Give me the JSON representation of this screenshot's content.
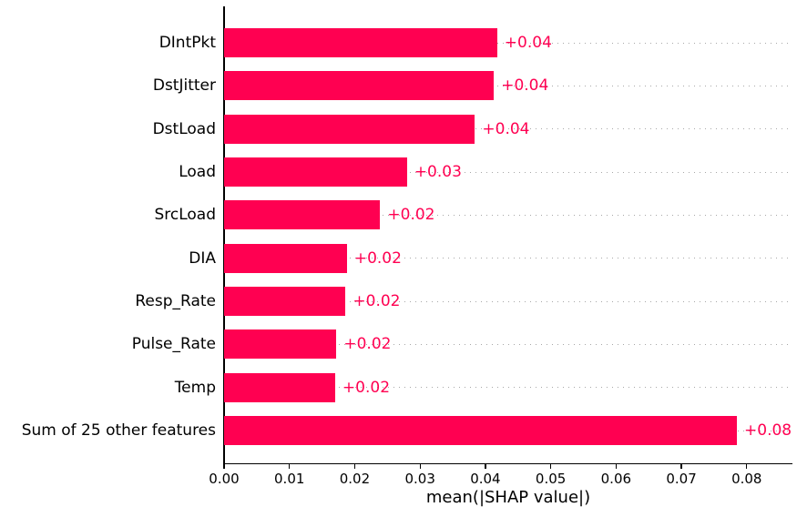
{
  "chart_data": {
    "type": "bar",
    "orientation": "horizontal",
    "title": "",
    "xlabel": "mean(|SHAP value|)",
    "ylabel": "",
    "categories": [
      "DIntPkt",
      "DstJitter",
      "DstLoad",
      "Load",
      "SrcLoad",
      "DIA",
      "Resp_Rate",
      "Pulse_Rate",
      "Temp",
      "Sum of 25 other features"
    ],
    "values": [
      0.0418,
      0.0413,
      0.0384,
      0.028,
      0.0239,
      0.0188,
      0.0186,
      0.0172,
      0.017,
      0.0785
    ],
    "bar_labels": [
      "+0.04",
      "+0.04",
      "+0.04",
      "+0.03",
      "+0.02",
      "+0.02",
      "+0.02",
      "+0.02",
      "+0.02",
      "+0.08"
    ],
    "x_tick_labels": [
      "0.00",
      "0.01",
      "0.02",
      "0.03",
      "0.04",
      "0.05",
      "0.06",
      "0.07",
      "0.08"
    ],
    "x_tick_values": [
      0.0,
      0.01,
      0.02,
      0.03,
      0.04,
      0.05,
      0.06,
      0.07,
      0.08
    ],
    "xlim": [
      0,
      0.087
    ],
    "grid": "horizontal dotted line per bar row, behind bars",
    "legend": null,
    "colors": {
      "bar": "#ff0051",
      "value_label": "#ff0051",
      "axis": "#000000",
      "gridline": "#a8a8a8",
      "background": "#ffffff"
    }
  }
}
